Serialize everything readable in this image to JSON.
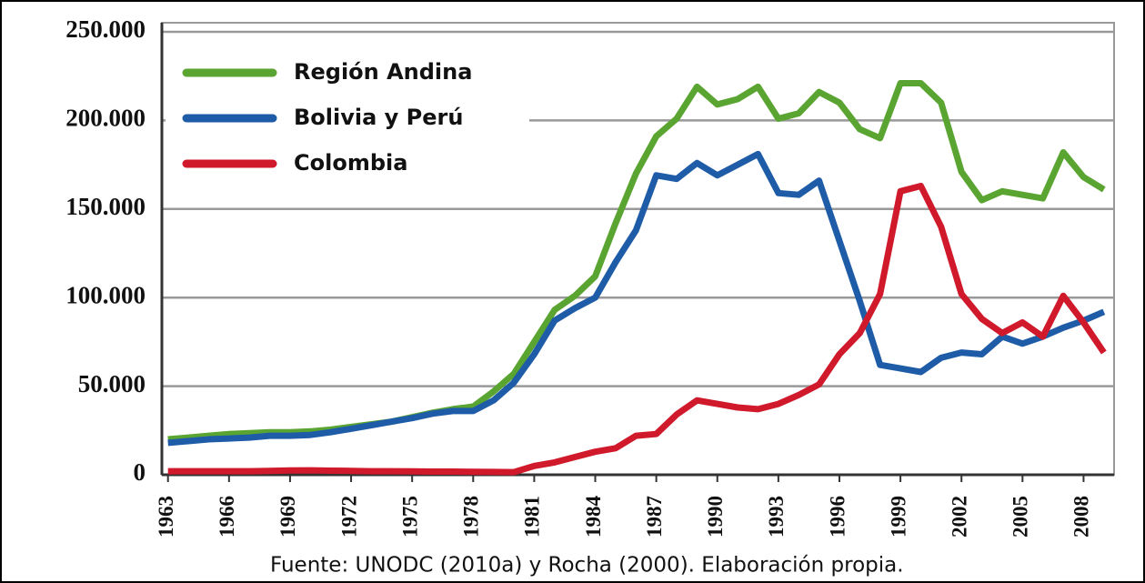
{
  "chart_data": {
    "type": "line",
    "source": "Fuente: UNODC (2010a) y Rocha (2000). Elaboración propia.",
    "x": [
      1963,
      1964,
      1965,
      1966,
      1967,
      1968,
      1969,
      1970,
      1971,
      1972,
      1973,
      1974,
      1975,
      1976,
      1977,
      1978,
      1979,
      1980,
      1981,
      1982,
      1983,
      1984,
      1985,
      1986,
      1987,
      1988,
      1989,
      1990,
      1991,
      1992,
      1993,
      1994,
      1995,
      1996,
      1997,
      1998,
      1999,
      2000,
      2001,
      2002,
      2003,
      2004,
      2005,
      2006,
      2007,
      2008,
      2009
    ],
    "series": [
      {
        "name": "Región Andina",
        "color": "#5aa532",
        "values": [
          20000,
          21000,
          22000,
          23000,
          23500,
          24000,
          24000,
          24500,
          25500,
          27000,
          28500,
          30000,
          32500,
          35000,
          37000,
          38500,
          47000,
          57000,
          75000,
          93000,
          101000,
          112000,
          142000,
          170000,
          191000,
          201000,
          219000,
          209000,
          212000,
          219000,
          201000,
          204000,
          216000,
          210000,
          195000,
          190000,
          221000,
          221000,
          210000,
          171000,
          155000,
          160000,
          158000,
          156000,
          182000,
          168000,
          161000
        ]
      },
      {
        "name": "Bolivia y Perú",
        "color": "#1f5ca8",
        "values": [
          18000,
          19000,
          20000,
          20500,
          21000,
          22000,
          22000,
          22500,
          24000,
          26000,
          28000,
          30000,
          32000,
          34500,
          36000,
          36000,
          42000,
          52000,
          68000,
          87000,
          94000,
          100000,
          120000,
          138000,
          169000,
          167000,
          176000,
          169000,
          175000,
          181000,
          159000,
          158000,
          166000,
          132000,
          98000,
          62000,
          60000,
          58000,
          66000,
          69000,
          68000,
          78000,
          74000,
          78000,
          83000,
          87000,
          92000
        ]
      },
      {
        "name": "Colombia",
        "color": "#d0192b",
        "values": [
          2000,
          2000,
          2000,
          2000,
          2000,
          2200,
          2400,
          2500,
          2300,
          2200,
          2000,
          2000,
          1900,
          1800,
          1800,
          1700,
          1600,
          1500,
          5000,
          7000,
          10000,
          13000,
          15000,
          22000,
          23000,
          34000,
          42000,
          40000,
          38000,
          37000,
          40000,
          45000,
          51000,
          68000,
          80000,
          102000,
          160000,
          163000,
          140000,
          102000,
          88000,
          80000,
          86000,
          78000,
          101000,
          86000,
          69000
        ]
      }
    ],
    "xlim": [
      1962.7,
      2009.5
    ],
    "xticks": [
      1963,
      1966,
      1969,
      1972,
      1975,
      1978,
      1981,
      1984,
      1987,
      1990,
      1993,
      1996,
      1999,
      2002,
      2005,
      2008
    ],
    "ylim": [
      0,
      250000
    ],
    "yticks": [
      0,
      {
        "value": 50000,
        "label": "50.000"
      },
      {
        "value": 100000,
        "label": "100.000"
      },
      {
        "value": 150000,
        "label": "150.000"
      },
      {
        "value": 200000,
        "label": "200.000"
      },
      {
        "value": 250000,
        "label": "250.000"
      }
    ],
    "grid": true,
    "legend": "upper left"
  }
}
